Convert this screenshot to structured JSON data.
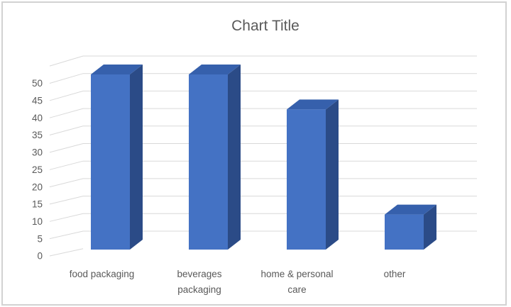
{
  "chart_data": {
    "type": "bar",
    "style": "3d-column",
    "title": "Chart Title",
    "categories": [
      "food packaging",
      "beverages packaging",
      "home & personal care",
      "other"
    ],
    "values": [
      50,
      50,
      40,
      10
    ],
    "xlabel": "",
    "ylabel": "",
    "yticks": [
      0,
      5,
      10,
      15,
      20,
      25,
      30,
      35,
      40,
      45,
      50
    ],
    "ylim": [
      0,
      55
    ],
    "ytick_step": 5,
    "grid": true,
    "legend": "none",
    "colors": {
      "bar_front": "#4472C4",
      "bar_top": "#3660AC",
      "bar_side": "#2B4B87",
      "gridline": "#D9D9D9",
      "text": "#595959",
      "border": "#D2D2D2",
      "background": "#FFFFFF"
    }
  }
}
